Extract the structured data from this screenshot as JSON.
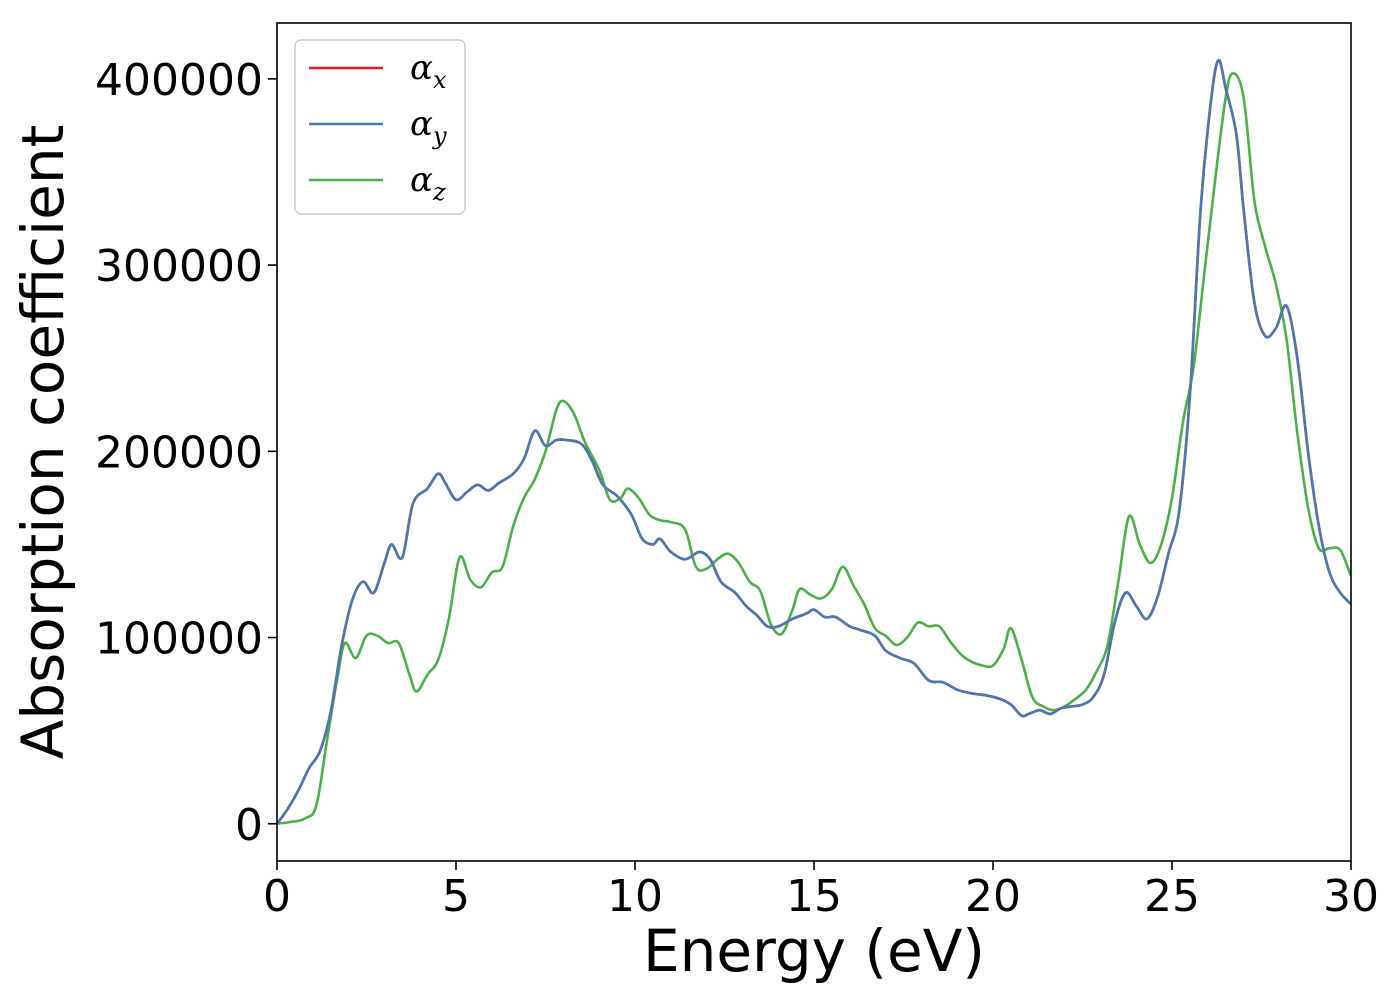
{
  "chart_data": {
    "type": "line",
    "xlabel": "Energy (eV)",
    "ylabel": "Absorption coefficient",
    "xlim": [
      0,
      30
    ],
    "ylim": [
      -20000,
      430000
    ],
    "xticks": [
      "0",
      "5",
      "10",
      "15",
      "20",
      "25",
      "30"
    ],
    "yticks": [
      "0",
      "100000",
      "200000",
      "300000",
      "400000"
    ],
    "grid": false,
    "legend_position": "top-left",
    "series": [
      {
        "name": "αx",
        "base": "α",
        "sub": "x",
        "color": "#e41a1c",
        "x": [
          0,
          0.3,
          0.6,
          0.9,
          1.2,
          1.5,
          1.8,
          2.1,
          2.4,
          2.7,
          3.0,
          3.2,
          3.5,
          3.8,
          4.2,
          4.5,
          4.7,
          5.0,
          5.3,
          5.6,
          5.9,
          6.2,
          6.6,
          6.9,
          7.2,
          7.5,
          7.8,
          8.1,
          8.5,
          8.8,
          9.1,
          9.5,
          9.9,
          10.2,
          10.5,
          10.7,
          11.0,
          11.4,
          11.8,
          12.1,
          12.4,
          12.8,
          13.1,
          13.4,
          13.7,
          14.0,
          14.4,
          14.8,
          15.0,
          15.3,
          15.6,
          16.0,
          16.3,
          16.7,
          17.0,
          17.4,
          17.8,
          18.2,
          18.6,
          19.0,
          19.4,
          19.8,
          20.2,
          20.5,
          20.8,
          21.0,
          21.3,
          21.6,
          21.9,
          22.2,
          22.5,
          22.8,
          23.1,
          23.4,
          23.7,
          24.0,
          24.3,
          24.6,
          24.9,
          25.2,
          25.5,
          25.8,
          26.1,
          26.3,
          26.5,
          26.8,
          27.0,
          27.3,
          27.6,
          27.9,
          28.2,
          28.5,
          28.8,
          29.1,
          29.4,
          29.7,
          30.0
        ],
        "values": [
          0,
          8000,
          18000,
          30000,
          39000,
          60000,
          95000,
          120000,
          130000,
          124000,
          140000,
          150000,
          143000,
          172000,
          180000,
          188000,
          183000,
          174000,
          178000,
          182000,
          179000,
          183000,
          188000,
          196000,
          211000,
          203000,
          206000,
          206000,
          204000,
          195000,
          182000,
          176000,
          166000,
          153000,
          150000,
          153000,
          146000,
          142000,
          146000,
          142000,
          130000,
          124000,
          117000,
          112000,
          106000,
          106000,
          110000,
          113000,
          115000,
          111000,
          111000,
          106000,
          104000,
          101000,
          93000,
          89000,
          86000,
          77000,
          76000,
          72000,
          70000,
          69000,
          67000,
          64000,
          58000,
          59000,
          61000,
          59000,
          62000,
          63000,
          64000,
          68000,
          80000,
          108000,
          124000,
          117000,
          110000,
          122000,
          145000,
          168000,
          230000,
          330000,
          390000,
          410000,
          395000,
          370000,
          330000,
          280000,
          262000,
          266000,
          278000,
          250000,
          200000,
          160000,
          135000,
          124000,
          118000
        ]
      },
      {
        "name": "αy",
        "base": "α",
        "sub": "y",
        "color": "#4a78b0",
        "x": [
          0,
          0.3,
          0.6,
          0.9,
          1.2,
          1.5,
          1.8,
          2.1,
          2.4,
          2.7,
          3.0,
          3.2,
          3.5,
          3.8,
          4.2,
          4.5,
          4.7,
          5.0,
          5.3,
          5.6,
          5.9,
          6.2,
          6.6,
          6.9,
          7.2,
          7.5,
          7.8,
          8.1,
          8.5,
          8.8,
          9.1,
          9.5,
          9.9,
          10.2,
          10.5,
          10.7,
          11.0,
          11.4,
          11.8,
          12.1,
          12.4,
          12.8,
          13.1,
          13.4,
          13.7,
          14.0,
          14.4,
          14.8,
          15.0,
          15.3,
          15.6,
          16.0,
          16.3,
          16.7,
          17.0,
          17.4,
          17.8,
          18.2,
          18.6,
          19.0,
          19.4,
          19.8,
          20.2,
          20.5,
          20.8,
          21.0,
          21.3,
          21.6,
          21.9,
          22.2,
          22.5,
          22.8,
          23.1,
          23.4,
          23.7,
          24.0,
          24.3,
          24.6,
          24.9,
          25.2,
          25.5,
          25.8,
          26.1,
          26.3,
          26.5,
          26.8,
          27.0,
          27.3,
          27.6,
          27.9,
          28.2,
          28.5,
          28.8,
          29.1,
          29.4,
          29.7,
          30.0
        ],
        "values": [
          0,
          8000,
          18000,
          30000,
          39000,
          60000,
          95000,
          120000,
          130000,
          124000,
          140000,
          150000,
          143000,
          172000,
          180000,
          188000,
          183000,
          174000,
          178000,
          182000,
          179000,
          183000,
          188000,
          196000,
          211000,
          203000,
          206000,
          206000,
          204000,
          195000,
          182000,
          176000,
          166000,
          153000,
          150000,
          153000,
          146000,
          142000,
          146000,
          142000,
          130000,
          124000,
          117000,
          112000,
          106000,
          106000,
          110000,
          113000,
          115000,
          111000,
          111000,
          106000,
          104000,
          101000,
          93000,
          89000,
          86000,
          77000,
          76000,
          72000,
          70000,
          69000,
          67000,
          64000,
          58000,
          59000,
          61000,
          59000,
          62000,
          63000,
          64000,
          68000,
          80000,
          108000,
          124000,
          117000,
          110000,
          122000,
          145000,
          168000,
          230000,
          330000,
          390000,
          410000,
          395000,
          370000,
          330000,
          280000,
          262000,
          266000,
          278000,
          250000,
          200000,
          160000,
          135000,
          124000,
          118000
        ]
      },
      {
        "name": "αz",
        "base": "α",
        "sub": "z",
        "color": "#4daf4a",
        "x": [
          0,
          0.4,
          0.8,
          1.1,
          1.4,
          1.7,
          1.9,
          2.2,
          2.5,
          2.8,
          3.1,
          3.4,
          3.7,
          3.9,
          4.2,
          4.5,
          4.8,
          5.1,
          5.4,
          5.7,
          6.0,
          6.3,
          6.6,
          6.9,
          7.2,
          7.5,
          7.8,
          8.0,
          8.3,
          8.6,
          9.0,
          9.3,
          9.6,
          9.8,
          10.1,
          10.4,
          10.7,
          11.0,
          11.4,
          11.7,
          12.0,
          12.3,
          12.6,
          12.9,
          13.2,
          13.5,
          13.8,
          14.1,
          14.4,
          14.6,
          14.9,
          15.2,
          15.5,
          15.8,
          16.1,
          16.4,
          16.7,
          17.0,
          17.3,
          17.6,
          17.9,
          18.2,
          18.5,
          18.8,
          19.1,
          19.4,
          19.7,
          20.0,
          20.3,
          20.5,
          20.8,
          21.1,
          21.4,
          21.7,
          22.0,
          22.3,
          22.6,
          22.9,
          23.2,
          23.5,
          23.8,
          24.1,
          24.4,
          24.7,
          25.0,
          25.3,
          25.6,
          25.9,
          26.2,
          26.5,
          26.7,
          27.0,
          27.3,
          27.6,
          27.9,
          28.2,
          28.5,
          28.8,
          29.1,
          29.4,
          29.7,
          30.0
        ],
        "values": [
          0,
          1000,
          3000,
          10000,
          45000,
          80000,
          97000,
          89000,
          101000,
          101000,
          97000,
          97000,
          80000,
          71000,
          80000,
          88000,
          110000,
          143000,
          131000,
          127000,
          135000,
          138000,
          160000,
          175000,
          185000,
          200000,
          222000,
          227000,
          220000,
          205000,
          190000,
          174000,
          175000,
          180000,
          175000,
          166000,
          163000,
          162000,
          158000,
          138000,
          137000,
          142000,
          145000,
          140000,
          130000,
          125000,
          107000,
          102000,
          115000,
          126000,
          123000,
          121000,
          126000,
          138000,
          128000,
          118000,
          105000,
          101000,
          96000,
          100000,
          108000,
          106000,
          106000,
          98000,
          91000,
          87000,
          85000,
          85000,
          94000,
          105000,
          88000,
          68000,
          63000,
          61000,
          63000,
          67000,
          72000,
          82000,
          96000,
          130000,
          165000,
          150000,
          140000,
          150000,
          175000,
          215000,
          245000,
          295000,
          345000,
          390000,
          403000,
          390000,
          335000,
          310000,
          290000,
          260000,
          210000,
          170000,
          148000,
          148000,
          147000,
          133000
        ]
      }
    ]
  }
}
